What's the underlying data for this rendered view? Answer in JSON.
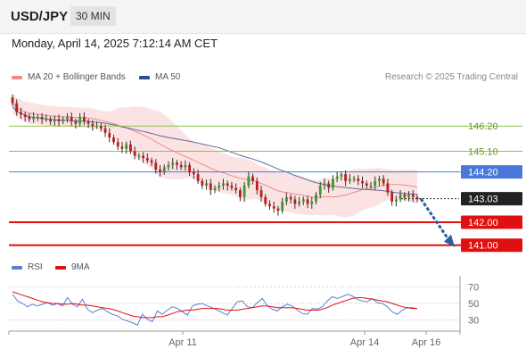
{
  "header": {
    "symbol": "USD/JPY",
    "timeframe": "30 MIN",
    "datetime": "Monday, April 14, 2025 7:12:14 AM CET"
  },
  "legend": {
    "ma20": {
      "label": "MA 20 + Bollinger Bands",
      "color": "#f08a8a"
    },
    "ma50": {
      "label": "MA 50",
      "color": "#2d4f8c"
    },
    "rsi": {
      "label": "RSI",
      "color": "#5b7fd6"
    },
    "rsi_ma": {
      "label": "9MA",
      "color": "#e01010"
    }
  },
  "credit": "Research © 2025 Trading Central",
  "chart_data": [
    {
      "type": "candlestick",
      "instrument": "USD/JPY",
      "timeframe": "30 MIN",
      "x_ticks": [
        "Apr 11",
        "Apr 14",
        "Apr 16"
      ],
      "ylim": [
        140.6,
        148.0
      ],
      "levels": [
        {
          "label": "146.20",
          "value": 146.2,
          "color": "#8bc34a",
          "text_color": "#6a9a1f",
          "badge": false
        },
        {
          "label": "145.10",
          "value": 145.1,
          "color": "#8bc34a",
          "text_color": "#6a9a1f",
          "badge": false
        },
        {
          "label": "144.20",
          "value": 144.2,
          "color": "#4a78d8",
          "text_color": "#ffffff",
          "badge": true
        },
        {
          "label": "143.03",
          "value": 143.03,
          "color": "#222222",
          "text_color": "#ffffff",
          "badge": true,
          "dotted": true
        },
        {
          "label": "142.00",
          "value": 142.0,
          "color": "#e01010",
          "text_color": "#ffffff",
          "badge": true
        },
        {
          "label": "141.00",
          "value": 141.0,
          "color": "#e01010",
          "text_color": "#ffffff",
          "badge": true
        }
      ],
      "closes": [
        147.2,
        146.8,
        146.7,
        146.6,
        146.5,
        146.6,
        146.6,
        146.5,
        146.5,
        146.4,
        146.5,
        146.4,
        146.5,
        146.6,
        146.4,
        146.3,
        146.6,
        146.4,
        146.3,
        146.2,
        146.2,
        146.1,
        145.9,
        145.7,
        145.5,
        145.3,
        145.2,
        145.4,
        145.1,
        144.9,
        144.9,
        144.8,
        144.7,
        144.6,
        144.3,
        144.2,
        144.4,
        144.5,
        144.6,
        144.5,
        144.4,
        144.5,
        144.2,
        144.1,
        143.8,
        143.6,
        143.7,
        143.4,
        143.5,
        143.6,
        143.7,
        143.6,
        143.5,
        143.4,
        143.1,
        143.6,
        144.0,
        143.8,
        143.4,
        143.1,
        142.8,
        142.7,
        142.6,
        142.5,
        142.9,
        143.1,
        143.0,
        142.8,
        142.9,
        143.0,
        142.8,
        142.9,
        143.2,
        143.6,
        143.7,
        143.5,
        143.9,
        144.0,
        144.1,
        143.8,
        143.9,
        143.9,
        143.8,
        143.7,
        143.6,
        143.6,
        143.8,
        143.9,
        143.7,
        143.3,
        142.9,
        143.0,
        143.2,
        143.1,
        143.2,
        143.1,
        143.0
      ],
      "projection": {
        "from": 143.03,
        "to": 141.0
      },
      "ma20_note": "MA 20 with Bollinger Bands",
      "ma50_note": "MA 50"
    },
    {
      "type": "line",
      "title": "RSI",
      "y_ticks": [
        70,
        50,
        30
      ],
      "ylim": [
        20,
        80
      ],
      "series": [
        {
          "name": "RSI",
          "values": [
            61,
            53,
            50,
            46,
            49,
            47,
            49,
            51,
            48,
            50,
            47,
            57,
            49,
            46,
            55,
            43,
            39,
            42,
            44,
            40,
            37,
            35,
            31,
            29,
            27,
            24,
            37,
            31,
            28,
            41,
            37,
            42,
            46,
            44,
            40,
            36,
            47,
            49,
            50,
            47,
            45,
            42,
            39,
            36,
            44,
            52,
            53,
            46,
            45,
            51,
            56,
            47,
            43,
            41,
            46,
            49,
            47,
            42,
            38,
            37,
            44,
            43,
            46,
            53,
            58,
            56,
            58,
            61,
            59,
            55,
            53,
            52,
            56,
            51,
            50,
            46,
            40,
            37,
            42,
            45,
            45,
            44
          ]
        },
        {
          "name": "9MA",
          "values": [
            64,
            62,
            60,
            58,
            56,
            54,
            52,
            51,
            50,
            50,
            49,
            49,
            50,
            49,
            48,
            48,
            47,
            46,
            45,
            44,
            43,
            41,
            39,
            37,
            35,
            34,
            33,
            33,
            33,
            34,
            34,
            36,
            38,
            40,
            41,
            42,
            42,
            43,
            44,
            44,
            44,
            44,
            43,
            42,
            42,
            42,
            43,
            44,
            45,
            46,
            47,
            47,
            46,
            45,
            45,
            45,
            45,
            44,
            43,
            42,
            42,
            42,
            43,
            45,
            48,
            50,
            52,
            54,
            56,
            57,
            57,
            56,
            55,
            54,
            53,
            52,
            50,
            48,
            46,
            45,
            44,
            44
          ]
        }
      ]
    }
  ]
}
